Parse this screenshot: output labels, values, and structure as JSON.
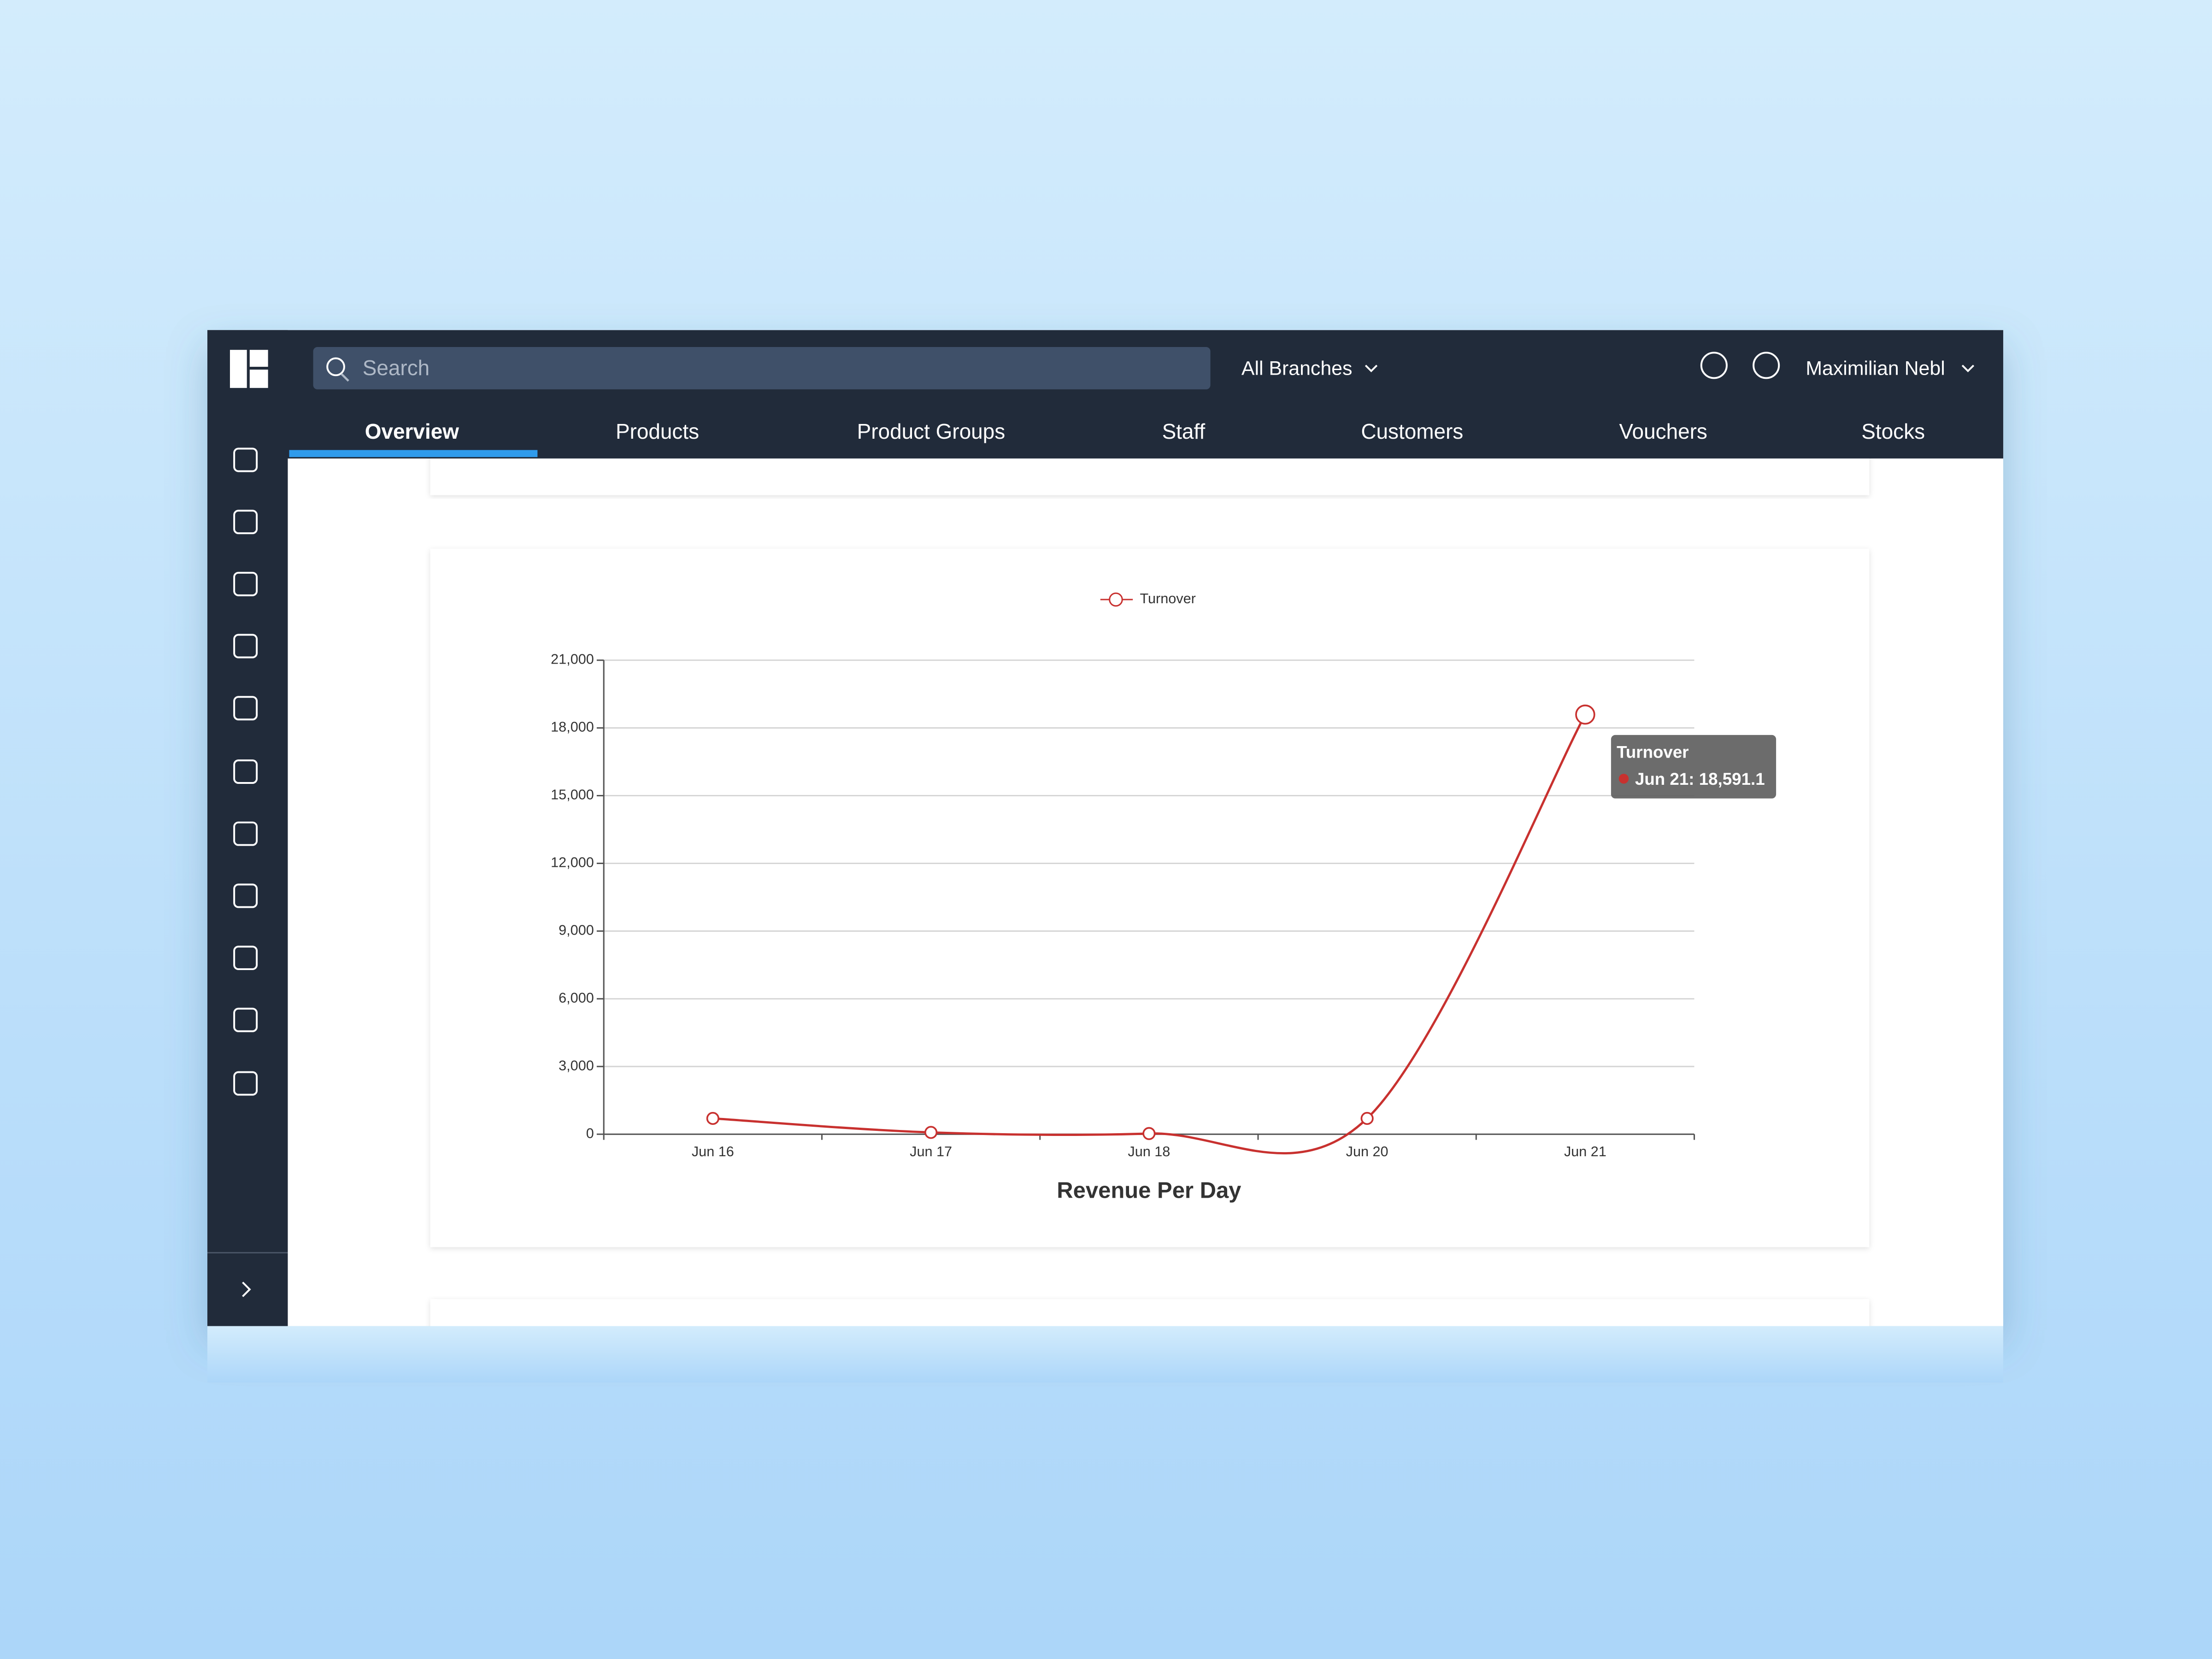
{
  "header": {
    "search_placeholder": "Search",
    "branch": "All Branches",
    "user": "Maximilian Nebl"
  },
  "tabs": [
    "Overview",
    "Products",
    "Product Groups",
    "Staff",
    "Customers",
    "Vouchers",
    "Stocks"
  ],
  "active_tab": 0,
  "chart_data": {
    "type": "line",
    "xlabel": "Revenue Per Day",
    "categories": [
      "Jun 16",
      "Jun 17",
      "Jun 18",
      "Jun 20",
      "Jun 21"
    ],
    "series": [
      {
        "name": "Turnover",
        "color": "#c8312f",
        "values": [
          700,
          80,
          30,
          700,
          18591.1
        ],
        "value_labels": [
          null,
          null,
          null,
          null,
          "18,591.1"
        ]
      }
    ],
    "ylim": [
      0,
      21000
    ],
    "yticks": [
      0,
      {
        "value": 3000,
        "label": "3,000"
      },
      {
        "value": 6000,
        "label": "6,000"
      },
      {
        "value": 9000,
        "label": "9,000"
      },
      {
        "value": 12000,
        "label": "12,000"
      },
      {
        "value": 15000,
        "label": "15,000"
      },
      {
        "value": 18000,
        "label": "18,000"
      },
      {
        "value": 21000,
        "label": "21,000"
      }
    ],
    "grid": true,
    "legend": "top"
  }
}
